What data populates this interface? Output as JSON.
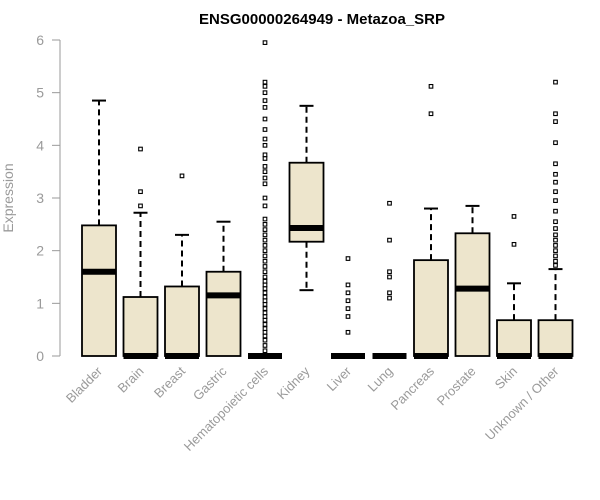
{
  "chart_data": {
    "type": "boxplot",
    "title": "ENSG00000264949 - Metazoa_SRP",
    "xlabel": "",
    "ylabel": "Expression",
    "ylim": [
      0,
      6
    ],
    "yticks": [
      0,
      1,
      2,
      3,
      4,
      5,
      6
    ],
    "grid": false,
    "colors": {
      "box_fill": "#ede5cc",
      "stroke": "#000000",
      "axis": "#9a9a9a"
    },
    "categories": [
      "Bladder",
      "Brain",
      "Breast",
      "Gastric",
      "Hematopoietic cells",
      "Kidney",
      "Liver",
      "Lung",
      "Pancreas",
      "Prostate",
      "Skin",
      "Unknown / Other"
    ],
    "boxes": [
      {
        "category": "Bladder",
        "q1": 0,
        "median": 1.6,
        "q3": 2.48,
        "whisker_low": 0,
        "whisker_high": 4.85,
        "outliers": []
      },
      {
        "category": "Brain",
        "q1": 0,
        "median": 0,
        "q3": 1.12,
        "whisker_low": 0,
        "whisker_high": 2.72,
        "outliers": [
          2.85,
          3.12,
          3.93
        ]
      },
      {
        "category": "Breast",
        "q1": 0,
        "median": 0,
        "q3": 1.32,
        "whisker_low": 0,
        "whisker_high": 2.3,
        "outliers": [
          3.42
        ]
      },
      {
        "category": "Gastric",
        "q1": 0,
        "median": 1.15,
        "q3": 1.6,
        "whisker_low": 0,
        "whisker_high": 2.55,
        "outliers": []
      },
      {
        "category": "Hematopoietic cells",
        "q1": 0,
        "median": 0,
        "q3": 0,
        "whisker_low": 0,
        "whisker_high": 0,
        "outliers": [
          0.1,
          0.2,
          0.3,
          0.38,
          0.45,
          0.52,
          0.6,
          0.68,
          0.75,
          0.82,
          0.9,
          0.98,
          1.05,
          1.12,
          1.2,
          1.28,
          1.35,
          1.42,
          1.5,
          1.6,
          1.7,
          1.8,
          1.9,
          2.0,
          2.1,
          2.2,
          2.3,
          2.4,
          2.5,
          2.6,
          2.85,
          3.0,
          3.27,
          3.38,
          3.5,
          3.6,
          3.75,
          3.82,
          4.0,
          4.12,
          4.3,
          4.5,
          4.72,
          4.85,
          5.0,
          5.12,
          5.2,
          5.95
        ]
      },
      {
        "category": "Kidney",
        "q1": 2.17,
        "median": 2.43,
        "q3": 3.67,
        "whisker_low": 1.25,
        "whisker_high": 4.75,
        "outliers": []
      },
      {
        "category": "Liver",
        "q1": 0,
        "median": 0,
        "q3": 0,
        "whisker_low": 0,
        "whisker_high": 0,
        "outliers": [
          0.45,
          0.75,
          0.9,
          1.05,
          1.2,
          1.35,
          1.85
        ]
      },
      {
        "category": "Lung",
        "q1": 0,
        "median": 0,
        "q3": 0,
        "whisker_low": 0,
        "whisker_high": 0,
        "outliers": [
          1.1,
          1.2,
          1.5,
          1.6,
          2.2,
          2.9
        ]
      },
      {
        "category": "Pancreas",
        "q1": 0,
        "median": 0,
        "q3": 1.82,
        "whisker_low": 0,
        "whisker_high": 2.8,
        "outliers": [
          4.6,
          5.12
        ]
      },
      {
        "category": "Prostate",
        "q1": 0,
        "median": 1.28,
        "q3": 2.33,
        "whisker_low": 0,
        "whisker_high": 2.85,
        "outliers": []
      },
      {
        "category": "Skin",
        "q1": 0,
        "median": 0,
        "q3": 0.68,
        "whisker_low": 0,
        "whisker_high": 1.38,
        "outliers": [
          2.12,
          2.65
        ]
      },
      {
        "category": "Unknown / Other",
        "q1": 0,
        "median": 0,
        "q3": 0.68,
        "whisker_low": 0,
        "whisker_high": 1.65,
        "outliers": [
          1.72,
          1.8,
          1.9,
          2.0,
          2.1,
          2.2,
          2.3,
          2.42,
          2.55,
          2.75,
          2.95,
          3.12,
          3.3,
          3.45,
          3.65,
          4.05,
          4.45,
          4.6,
          5.2
        ]
      }
    ]
  }
}
